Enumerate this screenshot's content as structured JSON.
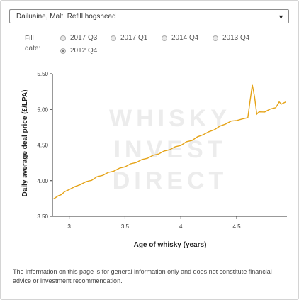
{
  "dropdown": {
    "value": "Dailuaine, Malt, Refill hogshead"
  },
  "fill_date": {
    "label_line1": "Fill",
    "label_line2": "date:",
    "options": [
      "2017 Q3",
      "2017 Q1",
      "2014 Q4",
      "2013 Q4",
      "2012 Q4"
    ],
    "selected": "2012 Q4"
  },
  "watermark": [
    "WHISKY",
    "INVEST",
    "DIRECT"
  ],
  "disclaimer": "The information on this page is for general information only and does not constitute financial advice or investment recommendation.",
  "colors": {
    "series": "#e5a317",
    "axis": "#333333",
    "watermark": "#ececec"
  },
  "chart_data": {
    "type": "line",
    "xlabel": "Age of whisky (years)",
    "ylabel": "Daily average deal price (£/LPA)",
    "xlim": [
      2.85,
      4.95
    ],
    "ylim": [
      3.5,
      5.5
    ],
    "xticks": [
      3,
      3.5,
      4,
      4.5
    ],
    "xtick_labels": [
      "3",
      "3.5",
      "4",
      "4.5"
    ],
    "yticks": [
      3.5,
      4.0,
      4.5,
      5.0,
      5.5
    ],
    "ytick_labels": [
      "3.50",
      "4.00",
      "4.50",
      "5.00",
      "5.50"
    ],
    "series": [
      {
        "x": [
          2.86,
          2.9,
          2.93,
          2.96,
          3.0,
          3.05,
          3.1,
          3.15,
          3.2,
          3.25,
          3.3,
          3.35,
          3.4,
          3.45,
          3.5,
          3.55,
          3.6,
          3.65,
          3.7,
          3.75,
          3.8,
          3.85,
          3.9,
          3.95,
          4.0,
          4.05,
          4.1,
          4.15,
          4.2,
          4.25,
          4.3,
          4.35,
          4.4,
          4.45,
          4.5,
          4.55,
          4.6,
          4.62,
          4.64,
          4.66,
          4.68,
          4.7,
          4.75,
          4.8,
          4.85,
          4.88,
          4.9,
          4.94
        ],
        "y": [
          3.75,
          3.78,
          3.81,
          3.84,
          3.88,
          3.91,
          3.95,
          3.98,
          4.01,
          4.05,
          4.08,
          4.11,
          4.14,
          4.17,
          4.2,
          4.23,
          4.26,
          4.29,
          4.32,
          4.35,
          4.38,
          4.41,
          4.44,
          4.47,
          4.5,
          4.54,
          4.57,
          4.61,
          4.65,
          4.68,
          4.72,
          4.76,
          4.8,
          4.83,
          4.85,
          4.86,
          4.89,
          5.12,
          5.35,
          5.17,
          4.94,
          4.96,
          4.97,
          5.0,
          5.03,
          5.1,
          5.08,
          5.1
        ]
      }
    ]
  }
}
